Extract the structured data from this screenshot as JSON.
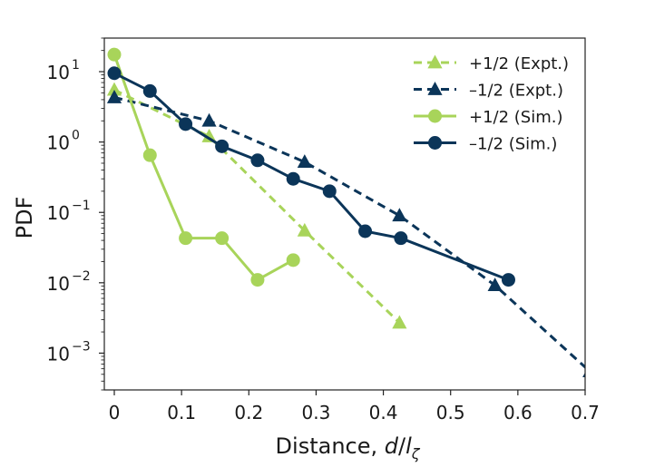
{
  "chart_data": {
    "type": "line",
    "xlabel_prefix": "Distance, ",
    "xlabel_var": "d",
    "xlabel_sep": "/",
    "xlabel_sub_base": "l",
    "xlabel_sub": "ζ",
    "ylabel": "PDF",
    "xlim": [
      0,
      0.7
    ],
    "ylim": [
      0.0003,
      30
    ],
    "y_scale": "log",
    "x_ticks": [
      0,
      0.1,
      0.2,
      0.3,
      0.4,
      0.5,
      0.6,
      0.7
    ],
    "x_tick_labels": [
      "0",
      "0.1",
      "0.2",
      "0.3",
      "0.4",
      "0.5",
      "0.6",
      "0.7"
    ],
    "y_ticks": [
      {
        "value": 10,
        "base": "10",
        "exp": "1"
      },
      {
        "value": 1,
        "base": "10",
        "exp": "0"
      },
      {
        "value": 0.1,
        "base": "10",
        "exp": "−1"
      },
      {
        "value": 0.01,
        "base": "10",
        "exp": "−2"
      },
      {
        "value": 0.001,
        "base": "10",
        "exp": "−3"
      }
    ],
    "grid": false,
    "legend_position": "top-right",
    "series": [
      {
        "name": "+1/2 (Expt.)",
        "color": "#a8d45a",
        "dash": true,
        "marker": "triangle",
        "x": [
          0,
          0.141,
          0.283,
          0.424
        ],
        "y": [
          5.5,
          1.2,
          0.055,
          0.0027
        ]
      },
      {
        "name": "–1/2 (Expt.)",
        "color": "#0b3559",
        "dash": true,
        "marker": "triangle",
        "x": [
          0,
          0.141,
          0.283,
          0.424,
          0.566,
          0.707
        ],
        "y": [
          4.3,
          2.0,
          0.52,
          0.09,
          0.0092,
          0.00055
        ]
      },
      {
        "name": "+1/2 (Sim.)",
        "color": "#a8d45a",
        "dash": false,
        "marker": "circle",
        "x": [
          0,
          0.053,
          0.106,
          0.16,
          0.213,
          0.266
        ],
        "y": [
          17.5,
          0.65,
          0.043,
          0.043,
          0.011,
          0.021
        ]
      },
      {
        "name": "–1/2 (Sim.)",
        "color": "#0b3559",
        "dash": false,
        "marker": "circle",
        "x": [
          0,
          0.053,
          0.106,
          0.16,
          0.213,
          0.266,
          0.32,
          0.373,
          0.426,
          0.586
        ],
        "y": [
          9.5,
          5.3,
          1.8,
          0.87,
          0.55,
          0.3,
          0.2,
          0.054,
          0.043,
          0.011
        ]
      }
    ]
  }
}
